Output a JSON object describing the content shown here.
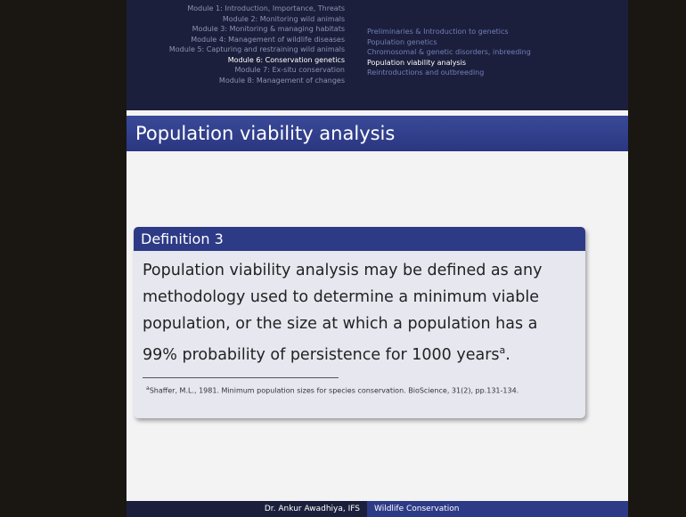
{
  "header": {
    "modules": [
      "Module 1: Introduction, Importance, Threats",
      "Module 2: Monitoring wild animals",
      "Module 3: Monitoring & managing habitats",
      "Module 4: Management of wildlife diseases",
      "Module 5: Capturing and restraining wild animals",
      "Module 6: Conservation genetics",
      "Module 7: Ex-situ conservation",
      "Module 8: Management of changes"
    ],
    "active_module": 5,
    "sections": [
      "Preliminaries & Introduction to genetics",
      "Population genetics",
      "Chromosomal & genetic disorders, inbreeding",
      "Population viability analysis",
      "Reintroductions and outbreeding"
    ],
    "active_section": 3
  },
  "slide": {
    "title": "Population viability analysis"
  },
  "definition": {
    "title": "Definition 3",
    "body": "Population viability analysis may be defined as any methodology used to determine a minimum viable population, or the size at which a population has a 99% probability of persistence for 1000 years",
    "footnote_mark": "a",
    "body_end": ".",
    "footnote": "Shaffer, M.L., 1981. Minimum population sizes for species conservation. BioScience, 31(2), pp.131-134."
  },
  "footer": {
    "author": "Dr. Ankur Awadhiya, IFS",
    "course": "Wildlife Conservation"
  }
}
